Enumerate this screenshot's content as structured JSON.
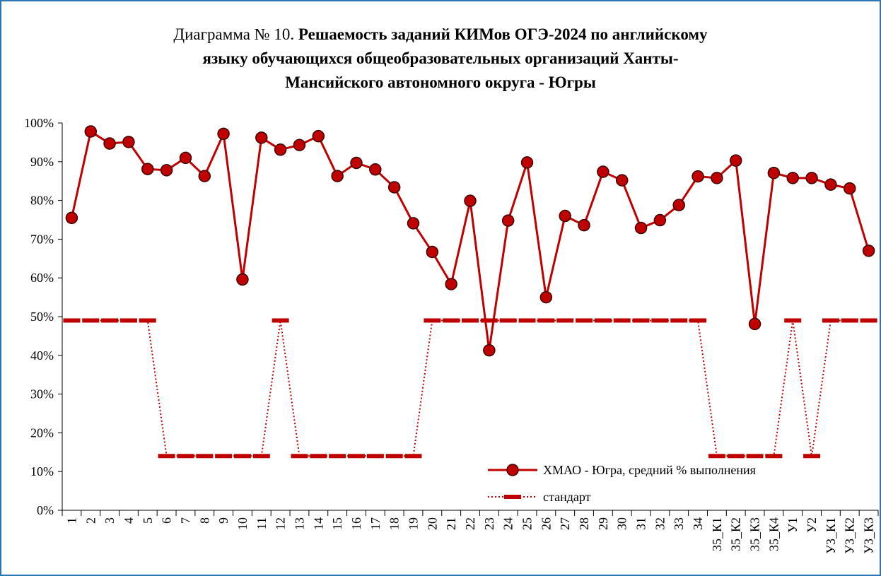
{
  "chart_data": {
    "type": "line",
    "title_label": "Диаграмма № 10.",
    "title": [
      "Решаемость заданий КИМов ОГЭ-2024 по английскому",
      "языку обучающихся общеобразовательных  организаций Ханты-",
      "Мансийского автономного округа - Югры"
    ],
    "categories": [
      "1",
      "2",
      "3",
      "4",
      "5",
      "6",
      "7",
      "8",
      "9",
      "10",
      "11",
      "12",
      "13",
      "14",
      "15",
      "16",
      "17",
      "18",
      "19",
      "20",
      "21",
      "22",
      "23",
      "24",
      "25",
      "26",
      "27",
      "28",
      "29",
      "30",
      "31",
      "32",
      "33",
      "34",
      "35_К1",
      "35_К2",
      "35_К3",
      "35_К4",
      "У1",
      "У2",
      "У3_К1",
      "У3_К2",
      "У3_К3"
    ],
    "series": [
      {
        "name": "ХМАО - Югра, средний % выполнения",
        "color": "#c00000",
        "marker": "circle",
        "line_style": "solid",
        "values": [
          75.5,
          97.8,
          94.7,
          95.1,
          88.1,
          87.8,
          91,
          86.3,
          97.2,
          59.6,
          96.2,
          93.1,
          94.3,
          96.6,
          86.3,
          89.7,
          88,
          83.4,
          74.1,
          66.7,
          58.4,
          79.9,
          41.3,
          74.8,
          89.8,
          55,
          76,
          73.6,
          87.4,
          85.2,
          72.9,
          74.9,
          78.8,
          86.2,
          85.8,
          90.3,
          48.1,
          87.1,
          85.8,
          85.8,
          84.1,
          83.1,
          67
        ]
      },
      {
        "name": "стандарт",
        "color": "#c00000",
        "marker": "dash",
        "line_style": "dotted",
        "values": [
          49,
          49,
          49,
          49,
          49,
          14,
          14,
          14,
          14,
          14,
          14,
          49,
          14,
          14,
          14,
          14,
          14,
          14,
          14,
          49,
          49,
          49,
          49,
          49,
          49,
          49,
          49,
          49,
          49,
          49,
          49,
          49,
          49,
          49,
          14,
          14,
          14,
          14,
          49,
          14,
          49,
          49,
          49
        ]
      }
    ],
    "ylim": [
      0,
      100
    ],
    "yticks": [
      {
        "value": 0,
        "label": "0%"
      },
      {
        "value": 10,
        "label": "10%"
      },
      {
        "value": 20,
        "label": "20%"
      },
      {
        "value": 30,
        "label": "30%"
      },
      {
        "value": 40,
        "label": "40%"
      },
      {
        "value": 50,
        "label": "50%"
      },
      {
        "value": 60,
        "label": "60%"
      },
      {
        "value": 70,
        "label": "70%"
      },
      {
        "value": 80,
        "label": "80%"
      },
      {
        "value": 90,
        "label": "90%"
      },
      {
        "value": 100,
        "label": "100%"
      }
    ],
    "grid": false,
    "legend": "lower right"
  }
}
